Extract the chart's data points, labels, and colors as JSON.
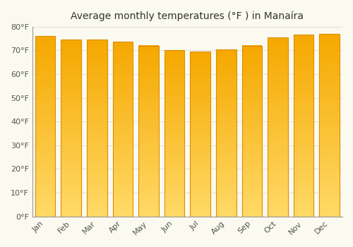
{
  "title": "Average monthly temperatures (°F ) in Manaíra",
  "months": [
    "Jan",
    "Feb",
    "Mar",
    "Apr",
    "May",
    "Jun",
    "Jul",
    "Aug",
    "Sep",
    "Oct",
    "Nov",
    "Dec"
  ],
  "values": [
    76,
    74.5,
    74.5,
    73.5,
    72,
    70,
    69.5,
    70.5,
    72,
    75.5,
    76.5,
    77
  ],
  "bar_color_top": "#F5A800",
  "bar_color_bottom": "#FFD966",
  "bar_edge_color": "#E08C00",
  "ylim": [
    0,
    80
  ],
  "yticks": [
    0,
    10,
    20,
    30,
    40,
    50,
    60,
    70,
    80
  ],
  "background_color": "#FAFAF0",
  "grid_color": "#E0E0E0",
  "title_fontsize": 10,
  "tick_fontsize": 8,
  "bar_width": 0.78,
  "n_gradient_steps": 50
}
